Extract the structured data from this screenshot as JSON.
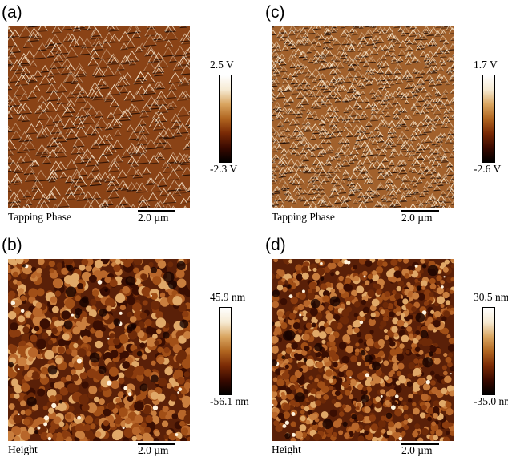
{
  "panels": [
    {
      "id": "a",
      "label": "(a)",
      "caption": "Tapping Phase",
      "colorbar_max": "2.5 V",
      "colorbar_min": "-2.3 V",
      "scale_bar": "2.0 µm",
      "image_type": "phase-relief-coarse"
    },
    {
      "id": "b",
      "label": "(b)",
      "caption": "Height",
      "colorbar_max": "45.9 nm",
      "colorbar_min": "-56.1 nm",
      "scale_bar": "2.0 µm",
      "image_type": "height-coarse"
    },
    {
      "id": "c",
      "label": "(c)",
      "caption": "Tapping Phase",
      "colorbar_max": "1.7 V",
      "colorbar_min": "-2.6 V",
      "scale_bar": "2.0 µm",
      "image_type": "phase-relief-fine"
    },
    {
      "id": "d",
      "label": "(d)",
      "caption": "Height",
      "colorbar_max": "30.5 nm",
      "colorbar_min": "-35.0 nm",
      "scale_bar": "2.0 µm",
      "image_type": "height-fine"
    }
  ],
  "colormap": [
    "#000000",
    "#3a0a00",
    "#7a2a05",
    "#b06520",
    "#d9a560",
    "#f6ead2",
    "#ffffff"
  ]
}
